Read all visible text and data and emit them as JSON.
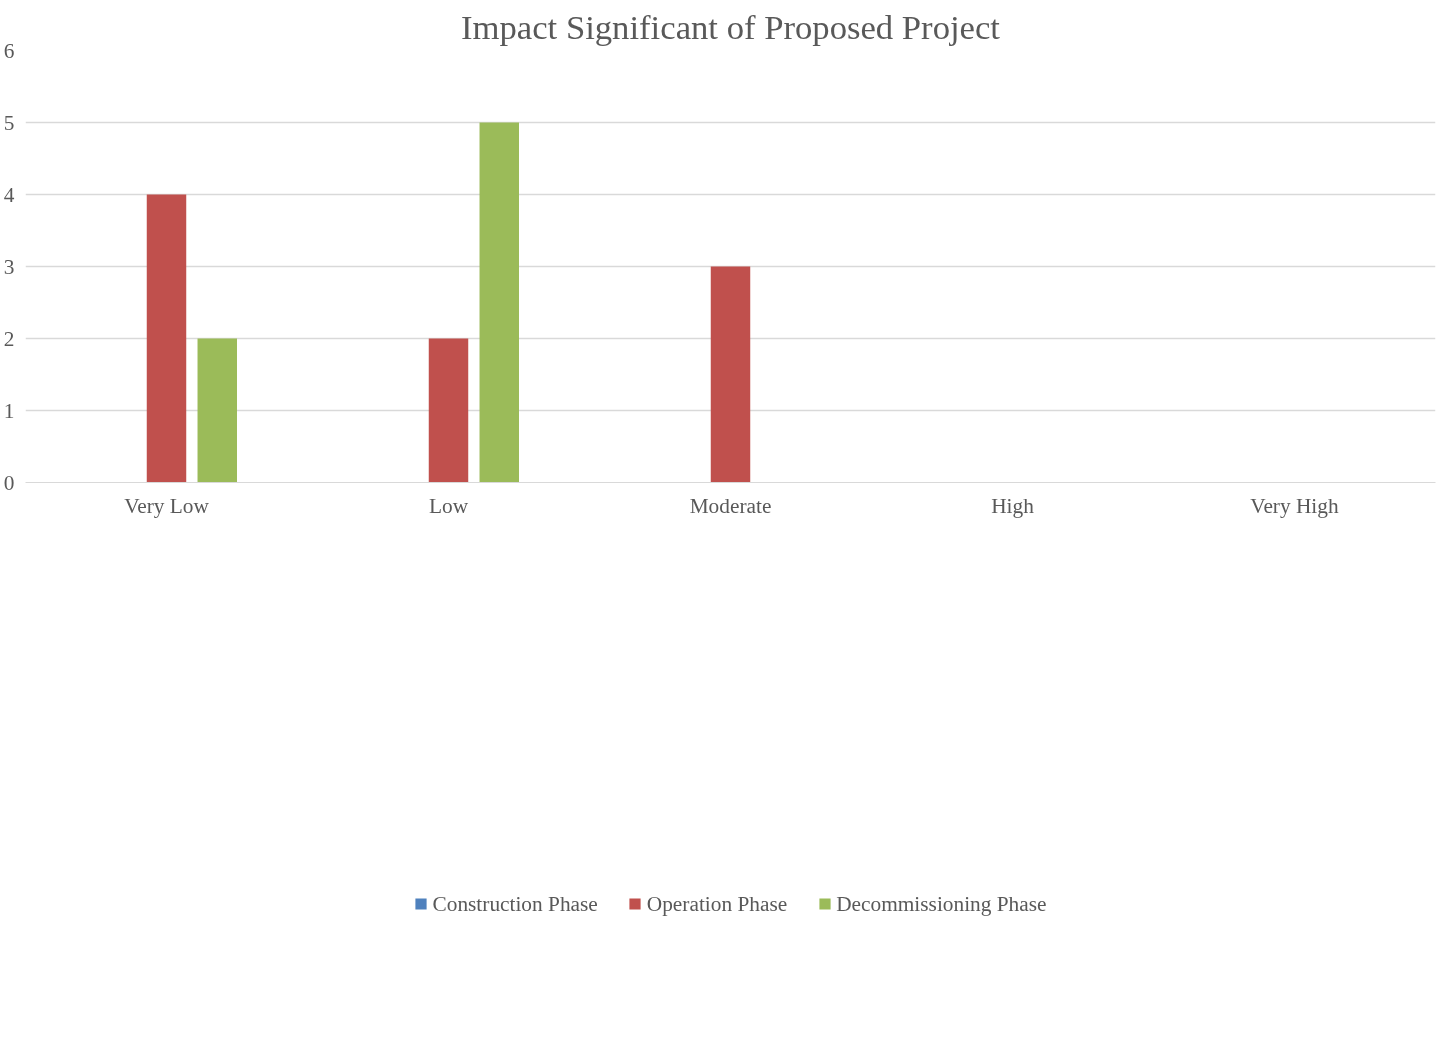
{
  "chart_data": {
    "type": "bar",
    "title": "Impact Significant of Proposed Project",
    "categories": [
      "Very Low",
      "Low",
      "Moderate",
      "High",
      "Very High"
    ],
    "series": [
      {
        "name": "Construction Phase",
        "color": "#4f81bd",
        "values": [
          0,
          0,
          0,
          0,
          0
        ]
      },
      {
        "name": "Operation Phase",
        "color": "#c0504d",
        "values": [
          4,
          2,
          3,
          0,
          0
        ]
      },
      {
        "name": "Decommissioning Phase",
        "color": "#9bbb59",
        "values": [
          2,
          5,
          0,
          0,
          0
        ]
      }
    ],
    "ylim": [
      0,
      6
    ],
    "yticks": [
      0,
      1,
      2,
      3,
      4,
      5,
      6
    ],
    "grid": "y",
    "legend": "bottom"
  }
}
